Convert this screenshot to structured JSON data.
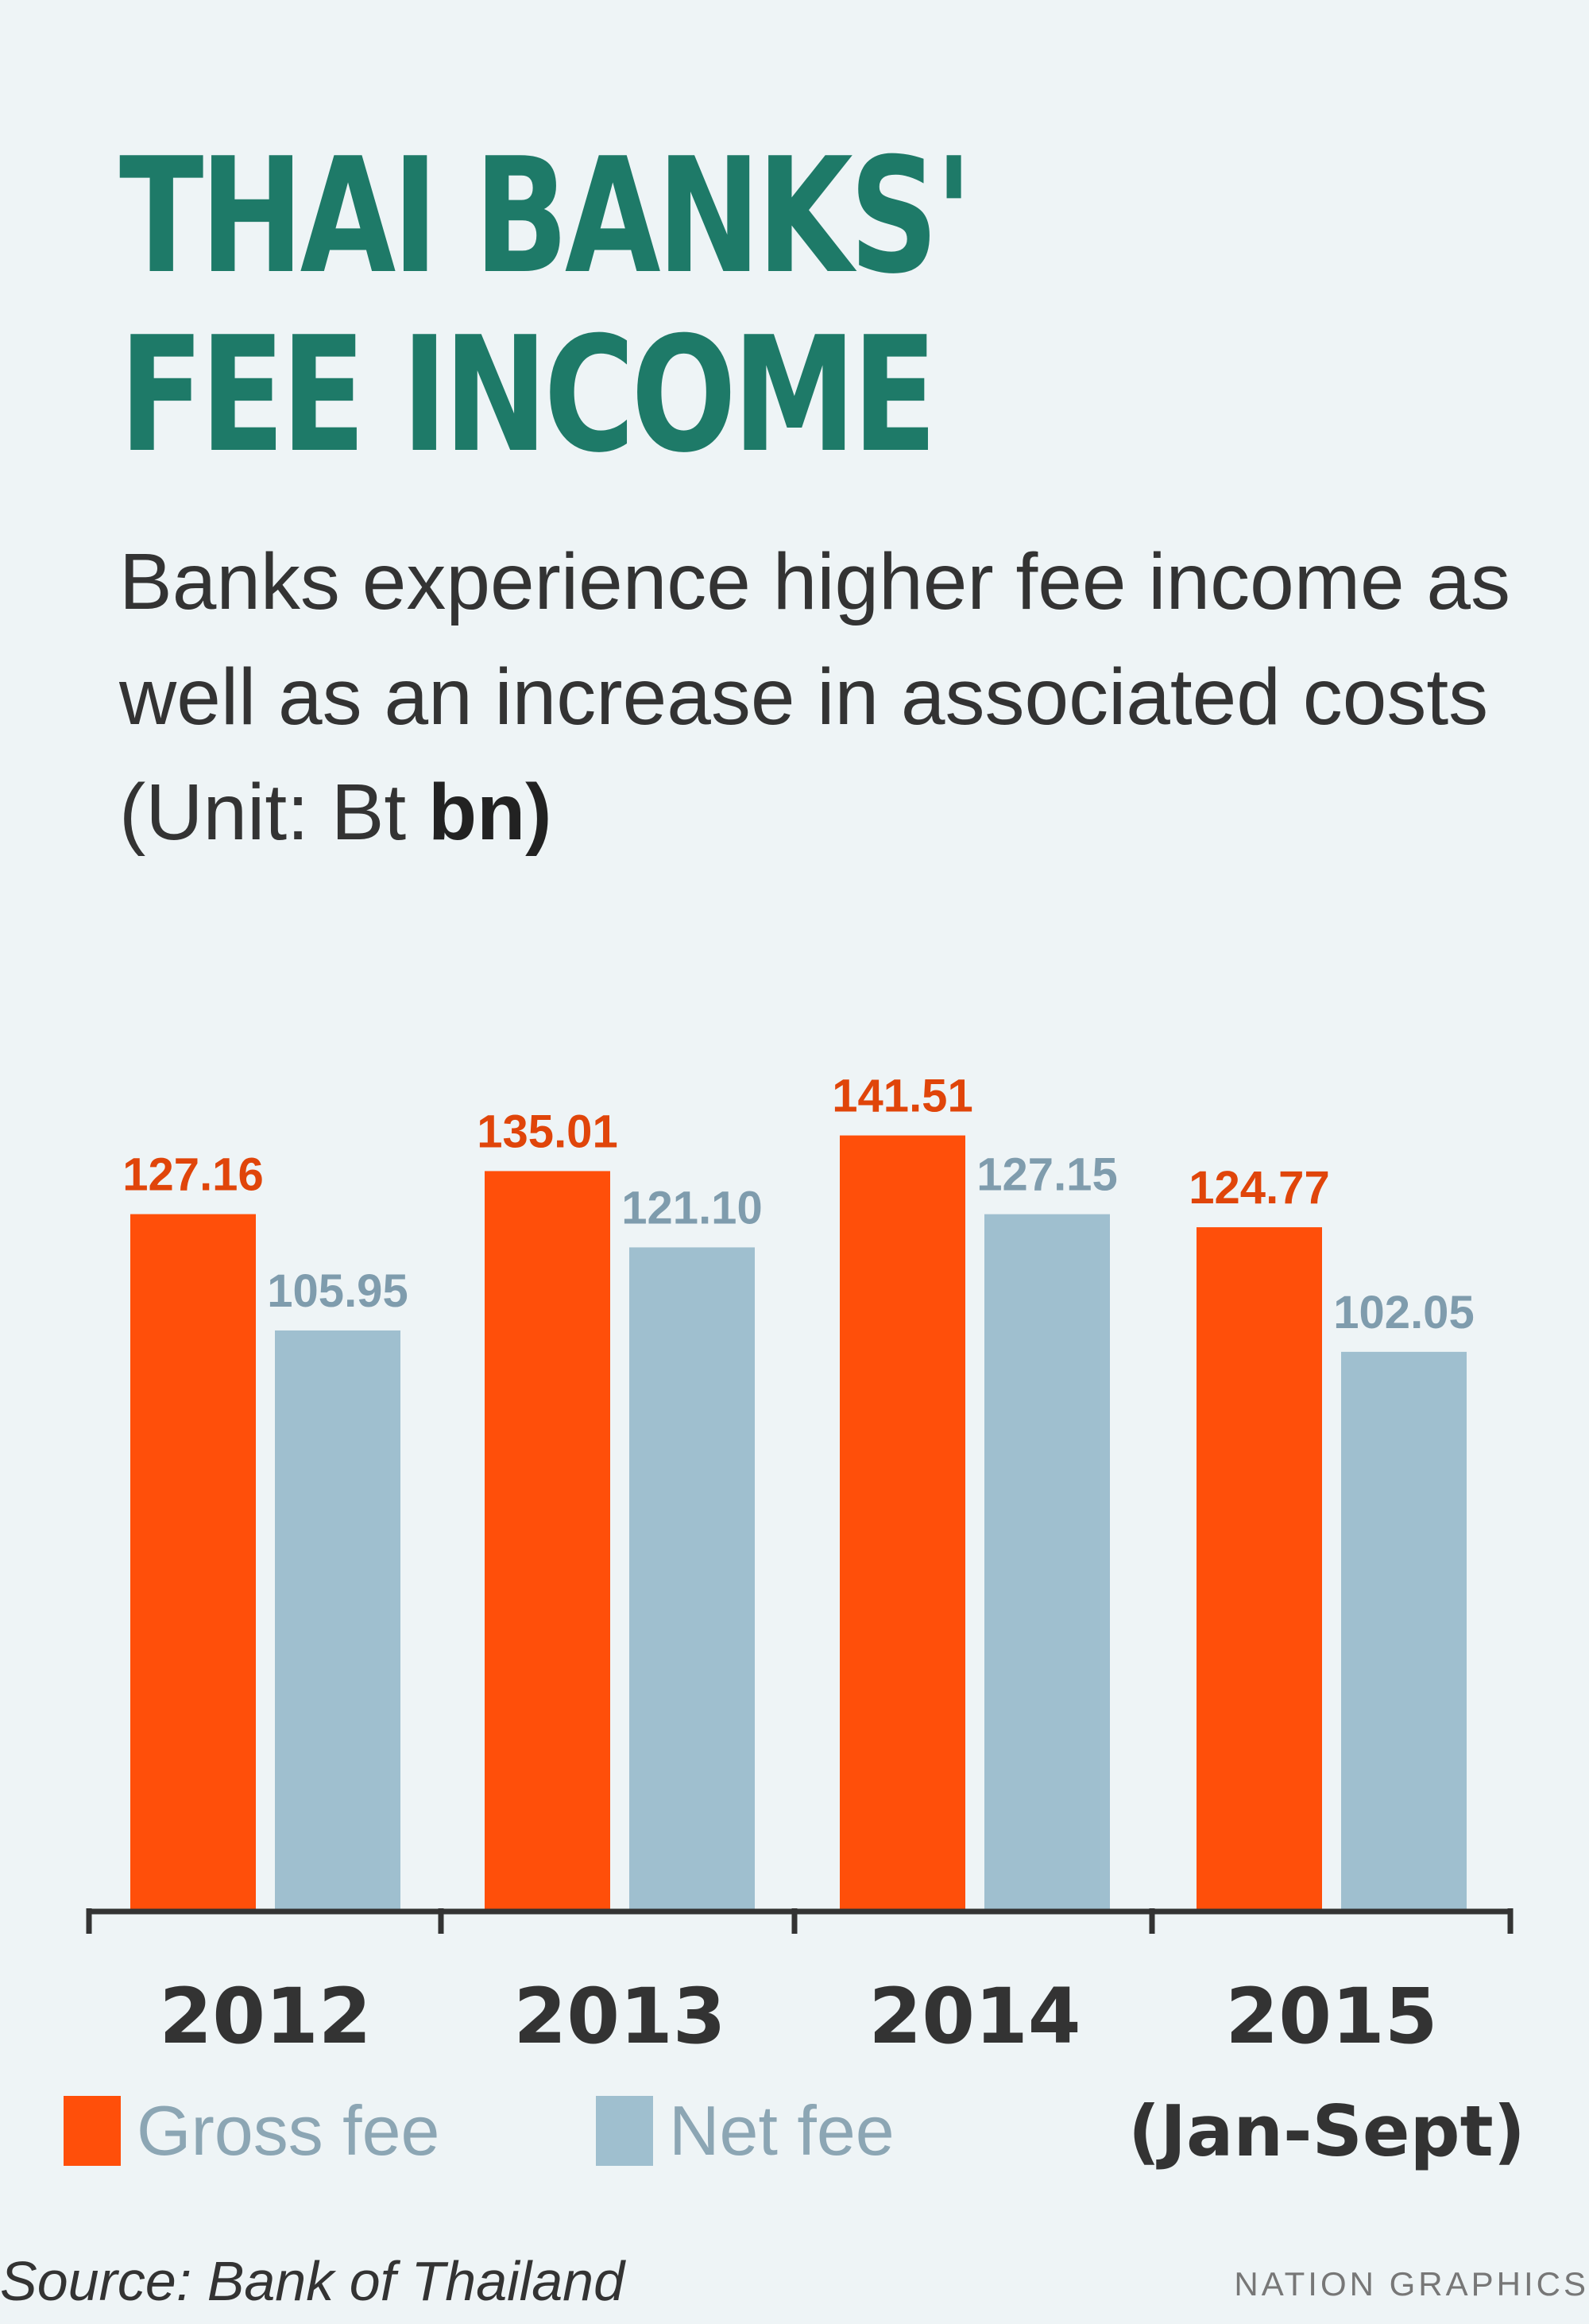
{
  "title_line1": "THAI BANKS'",
  "title_line2": "FEE INCOME",
  "subtitle": "Banks experience higher fee income as well as an increase in associated costs (Unit: Bt",
  "subtitle_unit": "bn)",
  "chart_data": {
    "type": "bar",
    "title": "THAI BANKS' FEE INCOME",
    "categories": [
      "2012",
      "2013",
      "2014",
      "2015"
    ],
    "category_note": "(Jan-Sept)",
    "series": [
      {
        "name": "Gross fee",
        "values": [
          127.16,
          135.01,
          141.51,
          124.77
        ],
        "labels": [
          "127.16",
          "135.01",
          "141.51",
          "124.77"
        ],
        "color": "#ff4f0a"
      },
      {
        "name": "Net fee",
        "values": [
          105.95,
          121.1,
          127.15,
          102.05
        ],
        "labels": [
          "105.95",
          "121.10",
          "127.15",
          "102.05"
        ],
        "color": "#9fbfcf"
      }
    ],
    "unit": "Bt bn",
    "grid": false,
    "legend": "bottom-left"
  },
  "source": "Source: Bank of Thailand",
  "credit": "NATION GRAPHICS"
}
